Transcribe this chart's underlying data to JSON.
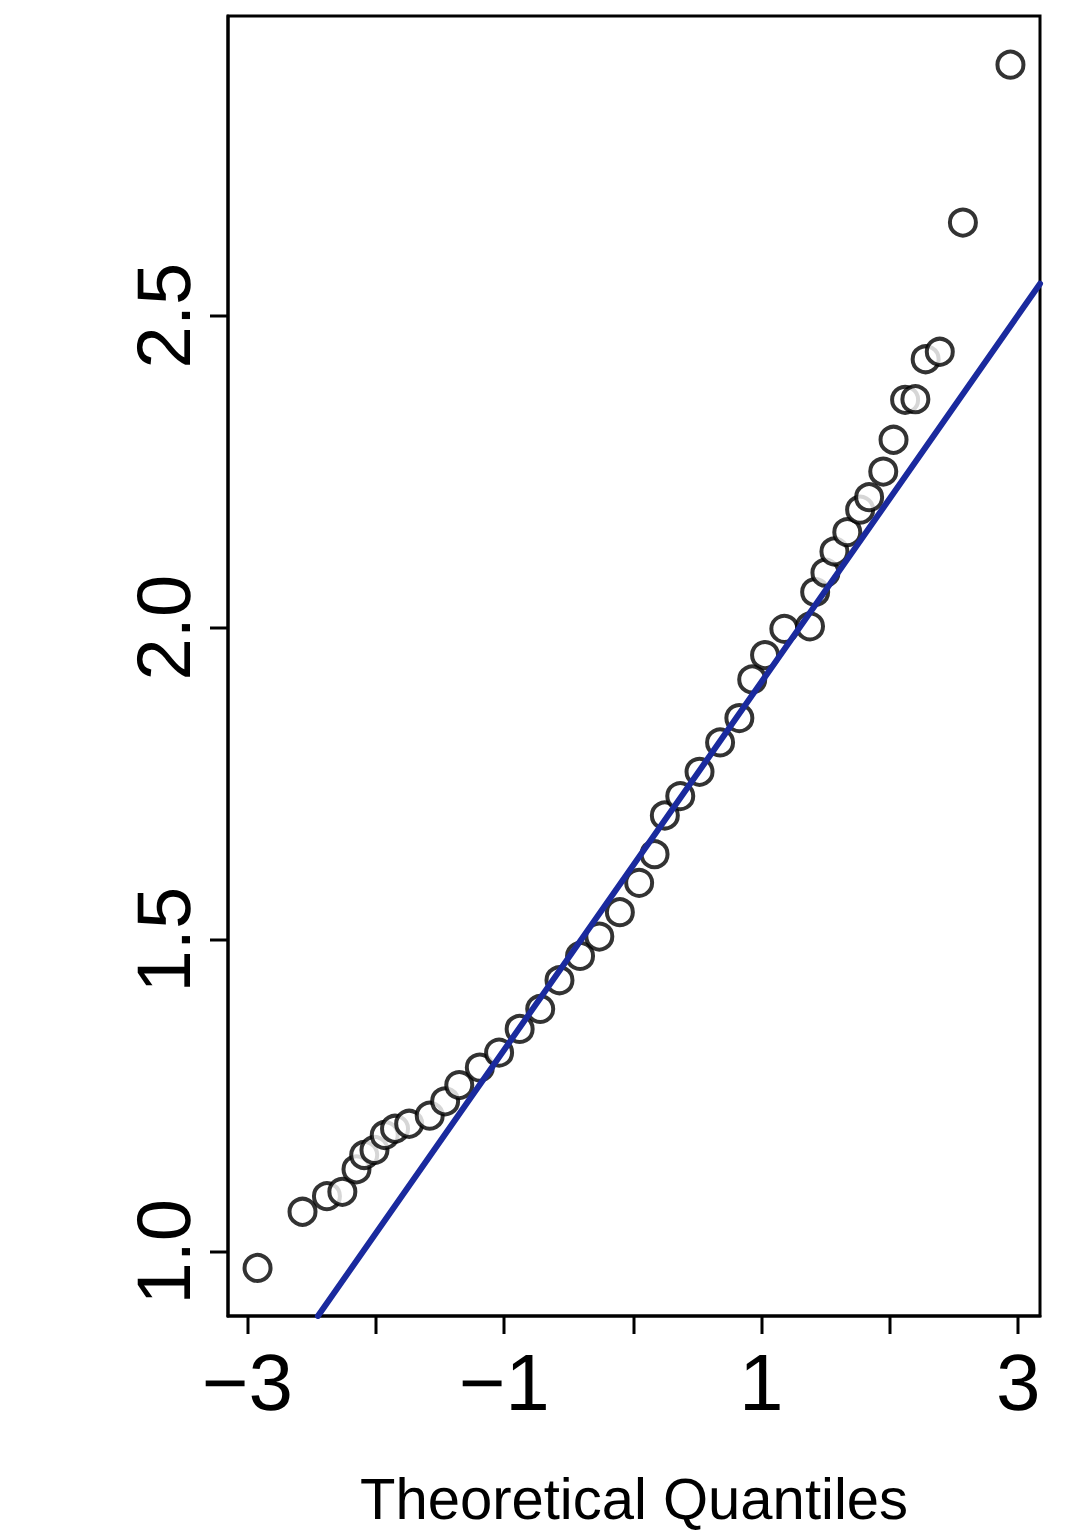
{
  "chart_data": {
    "type": "scatter",
    "xlabel": "Theoretical Quantiles",
    "xlim": [
      -3.15,
      3.17
    ],
    "ylim": [
      0.897,
      2.98
    ],
    "xticks": [
      {
        "value": -3,
        "label": "−3"
      },
      {
        "value": -2,
        "label": null
      },
      {
        "value": -1,
        "label": "−1"
      },
      {
        "value": 0,
        "label": null
      },
      {
        "value": 1,
        "label": "1"
      },
      {
        "value": 2,
        "label": null
      },
      {
        "value": 3,
        "label": "3"
      }
    ],
    "yticks": [
      {
        "value": 1,
        "label": "1.0"
      },
      {
        "value": 1.5,
        "label": "1.5"
      },
      {
        "value": 2,
        "label": "2.0"
      },
      {
        "value": 2.5,
        "label": "2.5"
      }
    ],
    "grid": false,
    "marker": "circle",
    "series": [
      {
        "color": "#000000",
        "x": [
          -2.92,
          -2.57,
          -2.38,
          -2.26,
          -2.15,
          -2.09,
          -2.01,
          -1.93,
          -1.85,
          -1.74,
          -1.58,
          -1.46,
          -1.35,
          -1.19,
          -1.04,
          -0.88,
          -0.72,
          -0.57,
          -0.41,
          -0.26,
          -0.1,
          0.05,
          0.17,
          0.25,
          0.37,
          0.52,
          0.68,
          0.83,
          0.93,
          1.03,
          1.18,
          1.38,
          1.42,
          1.5,
          1.57,
          1.67,
          1.77,
          1.84,
          1.95,
          2.03,
          2.12,
          2.2,
          2.28,
          2.39,
          2.57,
          2.94
        ],
        "values": [
          0.974,
          1.064,
          1.089,
          1.096,
          1.132,
          1.155,
          1.163,
          1.187,
          1.197,
          1.205,
          1.218,
          1.241,
          1.267,
          1.295,
          1.319,
          1.357,
          1.389,
          1.435,
          1.474,
          1.505,
          1.544,
          1.591,
          1.637,
          1.699,
          1.73,
          1.769,
          1.816,
          1.855,
          1.917,
          1.956,
          1.998,
          2.002,
          2.057,
          2.088,
          2.122,
          2.153,
          2.189,
          2.209,
          2.25,
          2.301,
          2.365,
          2.366,
          2.43,
          2.442,
          2.649,
          2.902
        ]
      },
      {
        "type": "line",
        "color": "#1a2a9e",
        "line_style": "solid",
        "marker": "none",
        "x": [
          -2.45,
          3.17
        ],
        "values": [
          0.897,
          2.551
        ]
      }
    ]
  }
}
